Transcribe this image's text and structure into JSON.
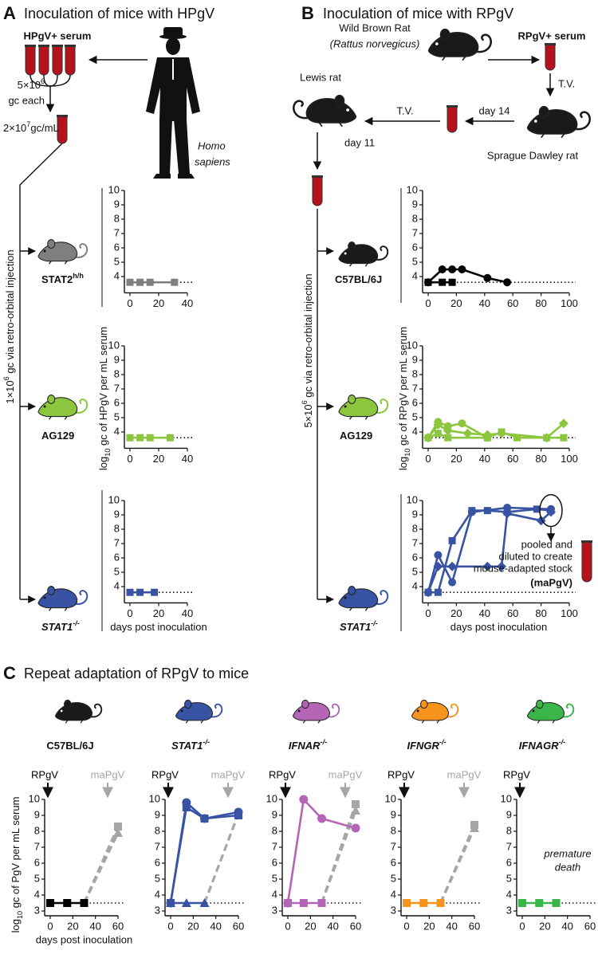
{
  "panel_a": {
    "label": "A",
    "title": "Inoculation of mice with HPgV",
    "serum": "HPgV+ serum",
    "dose": {
      "base": "5×10",
      "exp": "6",
      "unit": "gc each"
    },
    "concentration": {
      "base": "2×10",
      "exp": "7",
      "unit": "gc/mL"
    },
    "species": [
      "Homo",
      "sapiens"
    ],
    "route": {
      "base": "1×10",
      "exp": "6",
      "unit": " gc via retro-orbital injection"
    }
  },
  "panel_b": {
    "label": "B",
    "title": "Inoculation of mice with RPgV",
    "source": "Wild Brown Rat",
    "source_latin": "(Rattus norvegicus)",
    "serum": "RPgV+ serum",
    "transfer_1": "T.V.",
    "passage_1": "day 14",
    "host_1": "Sprague Dawley rat",
    "transfer_2": "T.V.",
    "host_2": "Lewis rat",
    "passage_2": "day 11",
    "route": {
      "base": "5×10",
      "exp": "6",
      "unit": " gc via retro-orbital injection"
    }
  },
  "panel_c": {
    "label": "C",
    "title": "Repeat adaptation of RPgV to mice"
  },
  "chart_data": [
    {
      "type": "line",
      "mouse": {
        "name": "STAT2",
        "sup": "h/h",
        "color": "#7f7f7f",
        "italic": false
      },
      "xlim": [
        0,
        40
      ],
      "xticks": [
        0,
        20,
        40
      ],
      "ylim": [
        3.2,
        10
      ],
      "yticks": [
        4,
        5,
        6,
        7,
        8,
        9,
        10
      ],
      "detection_limit": 3.6,
      "series": [
        {
          "color": "#7f7f7f",
          "marker": "square",
          "x": [
            0,
            7,
            14,
            31
          ],
          "values": [
            3.6,
            3.6,
            3.6,
            3.6
          ]
        }
      ]
    },
    {
      "type": "line",
      "mouse": {
        "name": "AG129",
        "color": "#8cc63f",
        "italic": false
      },
      "xlim": [
        0,
        40
      ],
      "xticks": [
        0,
        20,
        40
      ],
      "ylim": [
        3.2,
        10
      ],
      "yticks": [
        4,
        5,
        6,
        7,
        8,
        9,
        10
      ],
      "detection_limit": 3.6,
      "y_label": {
        "base": "log",
        "sub": "10",
        "text": " gc of HPgV per mL serum"
      },
      "series": [
        {
          "color": "#8cc63f",
          "marker": "square",
          "x": [
            0,
            7,
            14,
            28
          ],
          "values": [
            3.6,
            3.6,
            3.6,
            3.6
          ]
        }
      ]
    },
    {
      "type": "line",
      "mouse": {
        "name": "STAT1",
        "sup": "-/-",
        "color": "#3953a4",
        "italic": true
      },
      "xlim": [
        0,
        40
      ],
      "xticks": [
        0,
        20,
        40
      ],
      "ylim": [
        3.2,
        10
      ],
      "yticks": [
        4,
        5,
        6,
        7,
        8,
        9,
        10
      ],
      "detection_limit": 3.6,
      "x_label": "days post inoculation",
      "series": [
        {
          "color": "#3953a4",
          "marker": "square",
          "x": [
            0,
            7,
            17
          ],
          "values": [
            3.6,
            3.6,
            3.6
          ]
        }
      ]
    },
    {
      "type": "line",
      "mouse": {
        "name": "C57BL/6J",
        "color": "#1a1a1a",
        "italic": false
      },
      "xlim": [
        0,
        100
      ],
      "xticks": [
        0,
        20,
        40,
        60,
        80,
        100
      ],
      "ylim": [
        3.2,
        10
      ],
      "yticks": [
        4,
        5,
        6,
        7,
        8,
        9,
        10
      ],
      "detection_limit": 3.6,
      "series": [
        {
          "color": "#000000",
          "marker": "circle",
          "x": [
            0,
            10,
            17,
            24,
            42,
            56
          ],
          "values": [
            3.6,
            4.5,
            4.5,
            4.5,
            3.9,
            3.6
          ]
        },
        {
          "color": "#000000",
          "marker": "square",
          "x": [
            0,
            10,
            17
          ],
          "values": [
            3.6,
            3.6,
            3.6
          ]
        }
      ]
    },
    {
      "type": "line",
      "mouse": {
        "name": "AG129",
        "color": "#8cc63f",
        "italic": false
      },
      "xlim": [
        0,
        100
      ],
      "xticks": [
        0,
        20,
        40,
        60,
        80,
        100
      ],
      "ylim": [
        3.2,
        10
      ],
      "yticks": [
        4,
        5,
        6,
        7,
        8,
        9,
        10
      ],
      "detection_limit": 3.6,
      "y_label": {
        "base": "log",
        "sub": "10",
        "text": " gc of RPgV per mL serum"
      },
      "series": [
        {
          "color": "#8cc63f",
          "marker": "circle",
          "x": [
            0,
            7,
            14,
            24,
            42
          ],
          "values": [
            3.6,
            4.7,
            4.4,
            4.6,
            3.6
          ]
        },
        {
          "color": "#8cc63f",
          "marker": "diamond",
          "x": [
            0,
            7,
            14,
            28,
            42,
            52,
            84,
            96
          ],
          "values": [
            3.6,
            4.5,
            4.1,
            3.9,
            3.8,
            3.9,
            3.6,
            4.6
          ]
        },
        {
          "color": "#8cc63f",
          "marker": "square",
          "x": [
            0,
            7,
            14,
            42,
            52,
            63,
            84,
            96
          ],
          "values": [
            3.6,
            3.9,
            3.6,
            3.6,
            4.0,
            3.6,
            3.6,
            3.6
          ]
        }
      ]
    },
    {
      "type": "line",
      "mouse": {
        "name": "STAT1",
        "sup": "-/-",
        "color": "#3953a4",
        "italic": true
      },
      "xlim": [
        0,
        100
      ],
      "xticks": [
        0,
        20,
        40,
        60,
        80,
        100
      ],
      "ylim": [
        3.2,
        10
      ],
      "yticks": [
        4,
        5,
        6,
        7,
        8,
        9,
        10
      ],
      "detection_limit": 3.6,
      "x_label": "days post inoculation",
      "annotation": {
        "lines": [
          "pooled and",
          "diluted to create",
          "mouse-adapted stock"
        ],
        "stock": "(maPgV)"
      },
      "series": [
        {
          "color": "#3953a4",
          "marker": "circle",
          "x": [
            0,
            7,
            17,
            31,
            56,
            87
          ],
          "values": [
            3.6,
            6.2,
            4.3,
            9.2,
            9.5,
            9.4
          ]
        },
        {
          "color": "#3953a4",
          "marker": "square",
          "x": [
            0,
            7,
            17,
            31,
            42,
            56,
            77,
            87
          ],
          "values": [
            3.6,
            3.6,
            7.2,
            9.3,
            9.3,
            9.2,
            9.4,
            9.3
          ]
        },
        {
          "color": "#3953a4",
          "marker": "diamond",
          "x": [
            0,
            7,
            17,
            42,
            52,
            56,
            80,
            87
          ],
          "values": [
            3.6,
            5.4,
            5.4,
            5.4,
            5.4,
            9.1,
            8.6,
            9.2
          ]
        }
      ]
    },
    {
      "type": "line",
      "mouse": {
        "name": "C57BL/6J",
        "color": "#1a1a1a",
        "italic": false
      },
      "xlim": [
        0,
        60
      ],
      "xticks": [
        0,
        20,
        40,
        60
      ],
      "ylim": [
        3,
        10
      ],
      "yticks": [
        3,
        4,
        5,
        6,
        7,
        8,
        9,
        10
      ],
      "detection_limit": 3.5,
      "x_label": "days post inoculation",
      "y_label": {
        "base": "log",
        "sub": "10",
        "text": " gc of PgV per mL serum"
      },
      "inocula": [
        {
          "label": "RPgV",
          "color": "#000000"
        },
        {
          "label": "maPgV",
          "color": "#a6a6a6"
        }
      ],
      "series": [
        {
          "color": "#a6a6a6",
          "marker": "triangle",
          "dashed": true,
          "x": [
            30,
            60
          ],
          "values": [
            3.5,
            7.9
          ]
        },
        {
          "color": "#a6a6a6",
          "marker": "square",
          "dashed": true,
          "x": [
            30,
            60
          ],
          "values": [
            3.5,
            8.3
          ]
        },
        {
          "color": "#000000",
          "marker": "square",
          "x": [
            0,
            15,
            30
          ],
          "values": [
            3.5,
            3.5,
            3.5
          ]
        }
      ]
    },
    {
      "type": "line",
      "mouse": {
        "name": "STAT1",
        "sup": "-/-",
        "color": "#3953a4",
        "italic": true
      },
      "xlim": [
        0,
        60
      ],
      "xticks": [
        0,
        20,
        40,
        60
      ],
      "ylim": [
        3,
        10
      ],
      "yticks": [
        3,
        4,
        5,
        6,
        7,
        8,
        9,
        10
      ],
      "detection_limit": 3.5,
      "inocula": [
        {
          "label": "RPgV",
          "color": "#000000"
        },
        {
          "label": "maPgV",
          "color": "#a6a6a6"
        }
      ],
      "series": [
        {
          "color": "#a6a6a6",
          "marker": "triangle",
          "dashed": true,
          "x": [
            30,
            60
          ],
          "values": [
            3.5,
            9.1
          ]
        },
        {
          "color": "#3953a4",
          "marker": "triangle",
          "x": [
            0,
            14,
            30
          ],
          "values": [
            3.5,
            3.5,
            3.5
          ]
        },
        {
          "color": "#3953a4",
          "marker": "square",
          "x": [
            0,
            14,
            30,
            60
          ],
          "values": [
            3.5,
            9.5,
            8.8,
            9.0
          ]
        },
        {
          "color": "#3953a4",
          "marker": "circle",
          "x": [
            0,
            14,
            30,
            60
          ],
          "values": [
            3.5,
            9.8,
            8.8,
            9.2
          ]
        }
      ]
    },
    {
      "type": "line",
      "mouse": {
        "name": "IFNAR",
        "sup": "-/-",
        "color": "#b565b5",
        "italic": true
      },
      "xlim": [
        0,
        60
      ],
      "xticks": [
        0,
        20,
        40,
        60
      ],
      "ylim": [
        3,
        10
      ],
      "yticks": [
        3,
        4,
        5,
        6,
        7,
        8,
        9,
        10
      ],
      "detection_limit": 3.5,
      "inocula": [
        {
          "label": "RPgV",
          "color": "#000000"
        },
        {
          "label": "maPgV",
          "color": "#a6a6a6"
        }
      ],
      "series": [
        {
          "color": "#a6a6a6",
          "marker": "triangle",
          "dashed": true,
          "x": [
            30,
            60
          ],
          "values": [
            3.5,
            9.3
          ]
        },
        {
          "color": "#a6a6a6",
          "marker": "square",
          "dashed": true,
          "x": [
            30,
            60
          ],
          "values": [
            3.5,
            9.7
          ]
        },
        {
          "color": "#b565b5",
          "marker": "square",
          "x": [
            0,
            14,
            30
          ],
          "values": [
            3.5,
            3.5,
            3.5
          ]
        },
        {
          "color": "#b565b5",
          "marker": "circle",
          "x": [
            0,
            14,
            30,
            60
          ],
          "values": [
            3.5,
            10,
            8.8,
            8.2
          ]
        }
      ]
    },
    {
      "type": "line",
      "mouse": {
        "name": "IFNGR",
        "sup": "-/-",
        "color": "#f7941d",
        "italic": true
      },
      "xlim": [
        0,
        60
      ],
      "xticks": [
        0,
        20,
        40,
        60
      ],
      "ylim": [
        3,
        10
      ],
      "yticks": [
        3,
        4,
        5,
        6,
        7,
        8,
        9,
        10
      ],
      "detection_limit": 3.5,
      "inocula": [
        {
          "label": "RPgV",
          "color": "#000000"
        },
        {
          "label": "maPgV",
          "color": "#a6a6a6"
        }
      ],
      "series": [
        {
          "color": "#a6a6a6",
          "marker": "triangle",
          "dashed": true,
          "x": [
            30,
            60
          ],
          "values": [
            3.5,
            8.2
          ]
        },
        {
          "color": "#a6a6a6",
          "marker": "square",
          "dashed": true,
          "x": [
            30,
            60
          ],
          "values": [
            3.5,
            8.4
          ]
        },
        {
          "color": "#f7941d",
          "marker": "square",
          "x": [
            0,
            15,
            30
          ],
          "values": [
            3.5,
            3.5,
            3.5
          ]
        }
      ]
    },
    {
      "type": "line",
      "mouse": {
        "name": "IFNAGR",
        "sup": "-/-",
        "color": "#39b54a",
        "italic": true
      },
      "xlim": [
        0,
        60
      ],
      "xticks": [
        0,
        20,
        40,
        60
      ],
      "ylim": [
        3,
        10
      ],
      "yticks": [
        3,
        4,
        5,
        6,
        7,
        8,
        9,
        10
      ],
      "detection_limit": 3.5,
      "inocula": [
        {
          "label": "RPgV",
          "color": "#000000"
        }
      ],
      "annotation": {
        "lines": [
          "premature",
          "death"
        ]
      },
      "series": [
        {
          "color": "#39b54a",
          "marker": "square",
          "x": [
            0,
            15,
            30
          ],
          "values": [
            3.5,
            3.5,
            3.5
          ]
        }
      ]
    }
  ]
}
